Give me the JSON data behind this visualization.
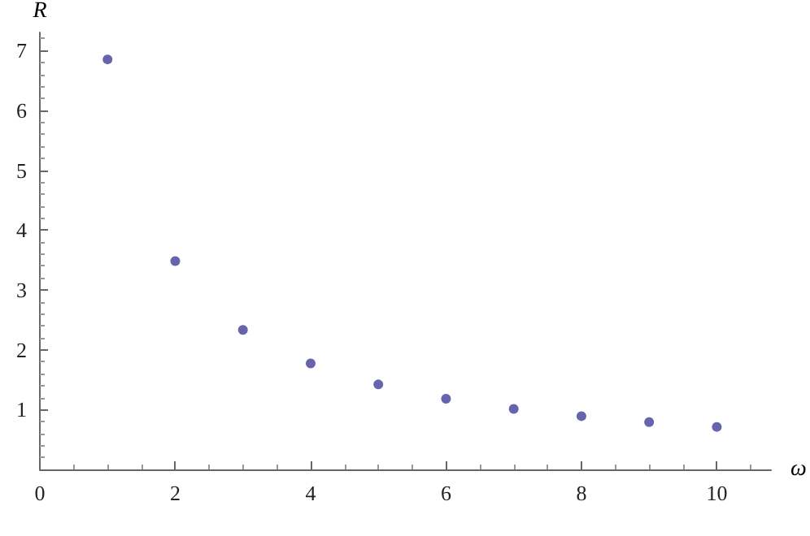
{
  "chart_data": {
    "type": "scatter",
    "xlabel": "ω",
    "ylabel": "R",
    "x": [
      1,
      2,
      3,
      4,
      5,
      6,
      7,
      8,
      9,
      10
    ],
    "values": [
      6.85,
      3.48,
      2.33,
      1.77,
      1.42,
      1.18,
      1.01,
      0.89,
      0.79,
      0.71
    ],
    "color": "#3f3d99",
    "marker": "circle",
    "grid": false,
    "xlim": [
      0,
      10.8
    ],
    "xticks": [
      0,
      2,
      4,
      6,
      8,
      10
    ],
    "ylim": [
      0,
      7.3
    ],
    "yticks": [
      1,
      2,
      3,
      4,
      5,
      6,
      7
    ]
  }
}
